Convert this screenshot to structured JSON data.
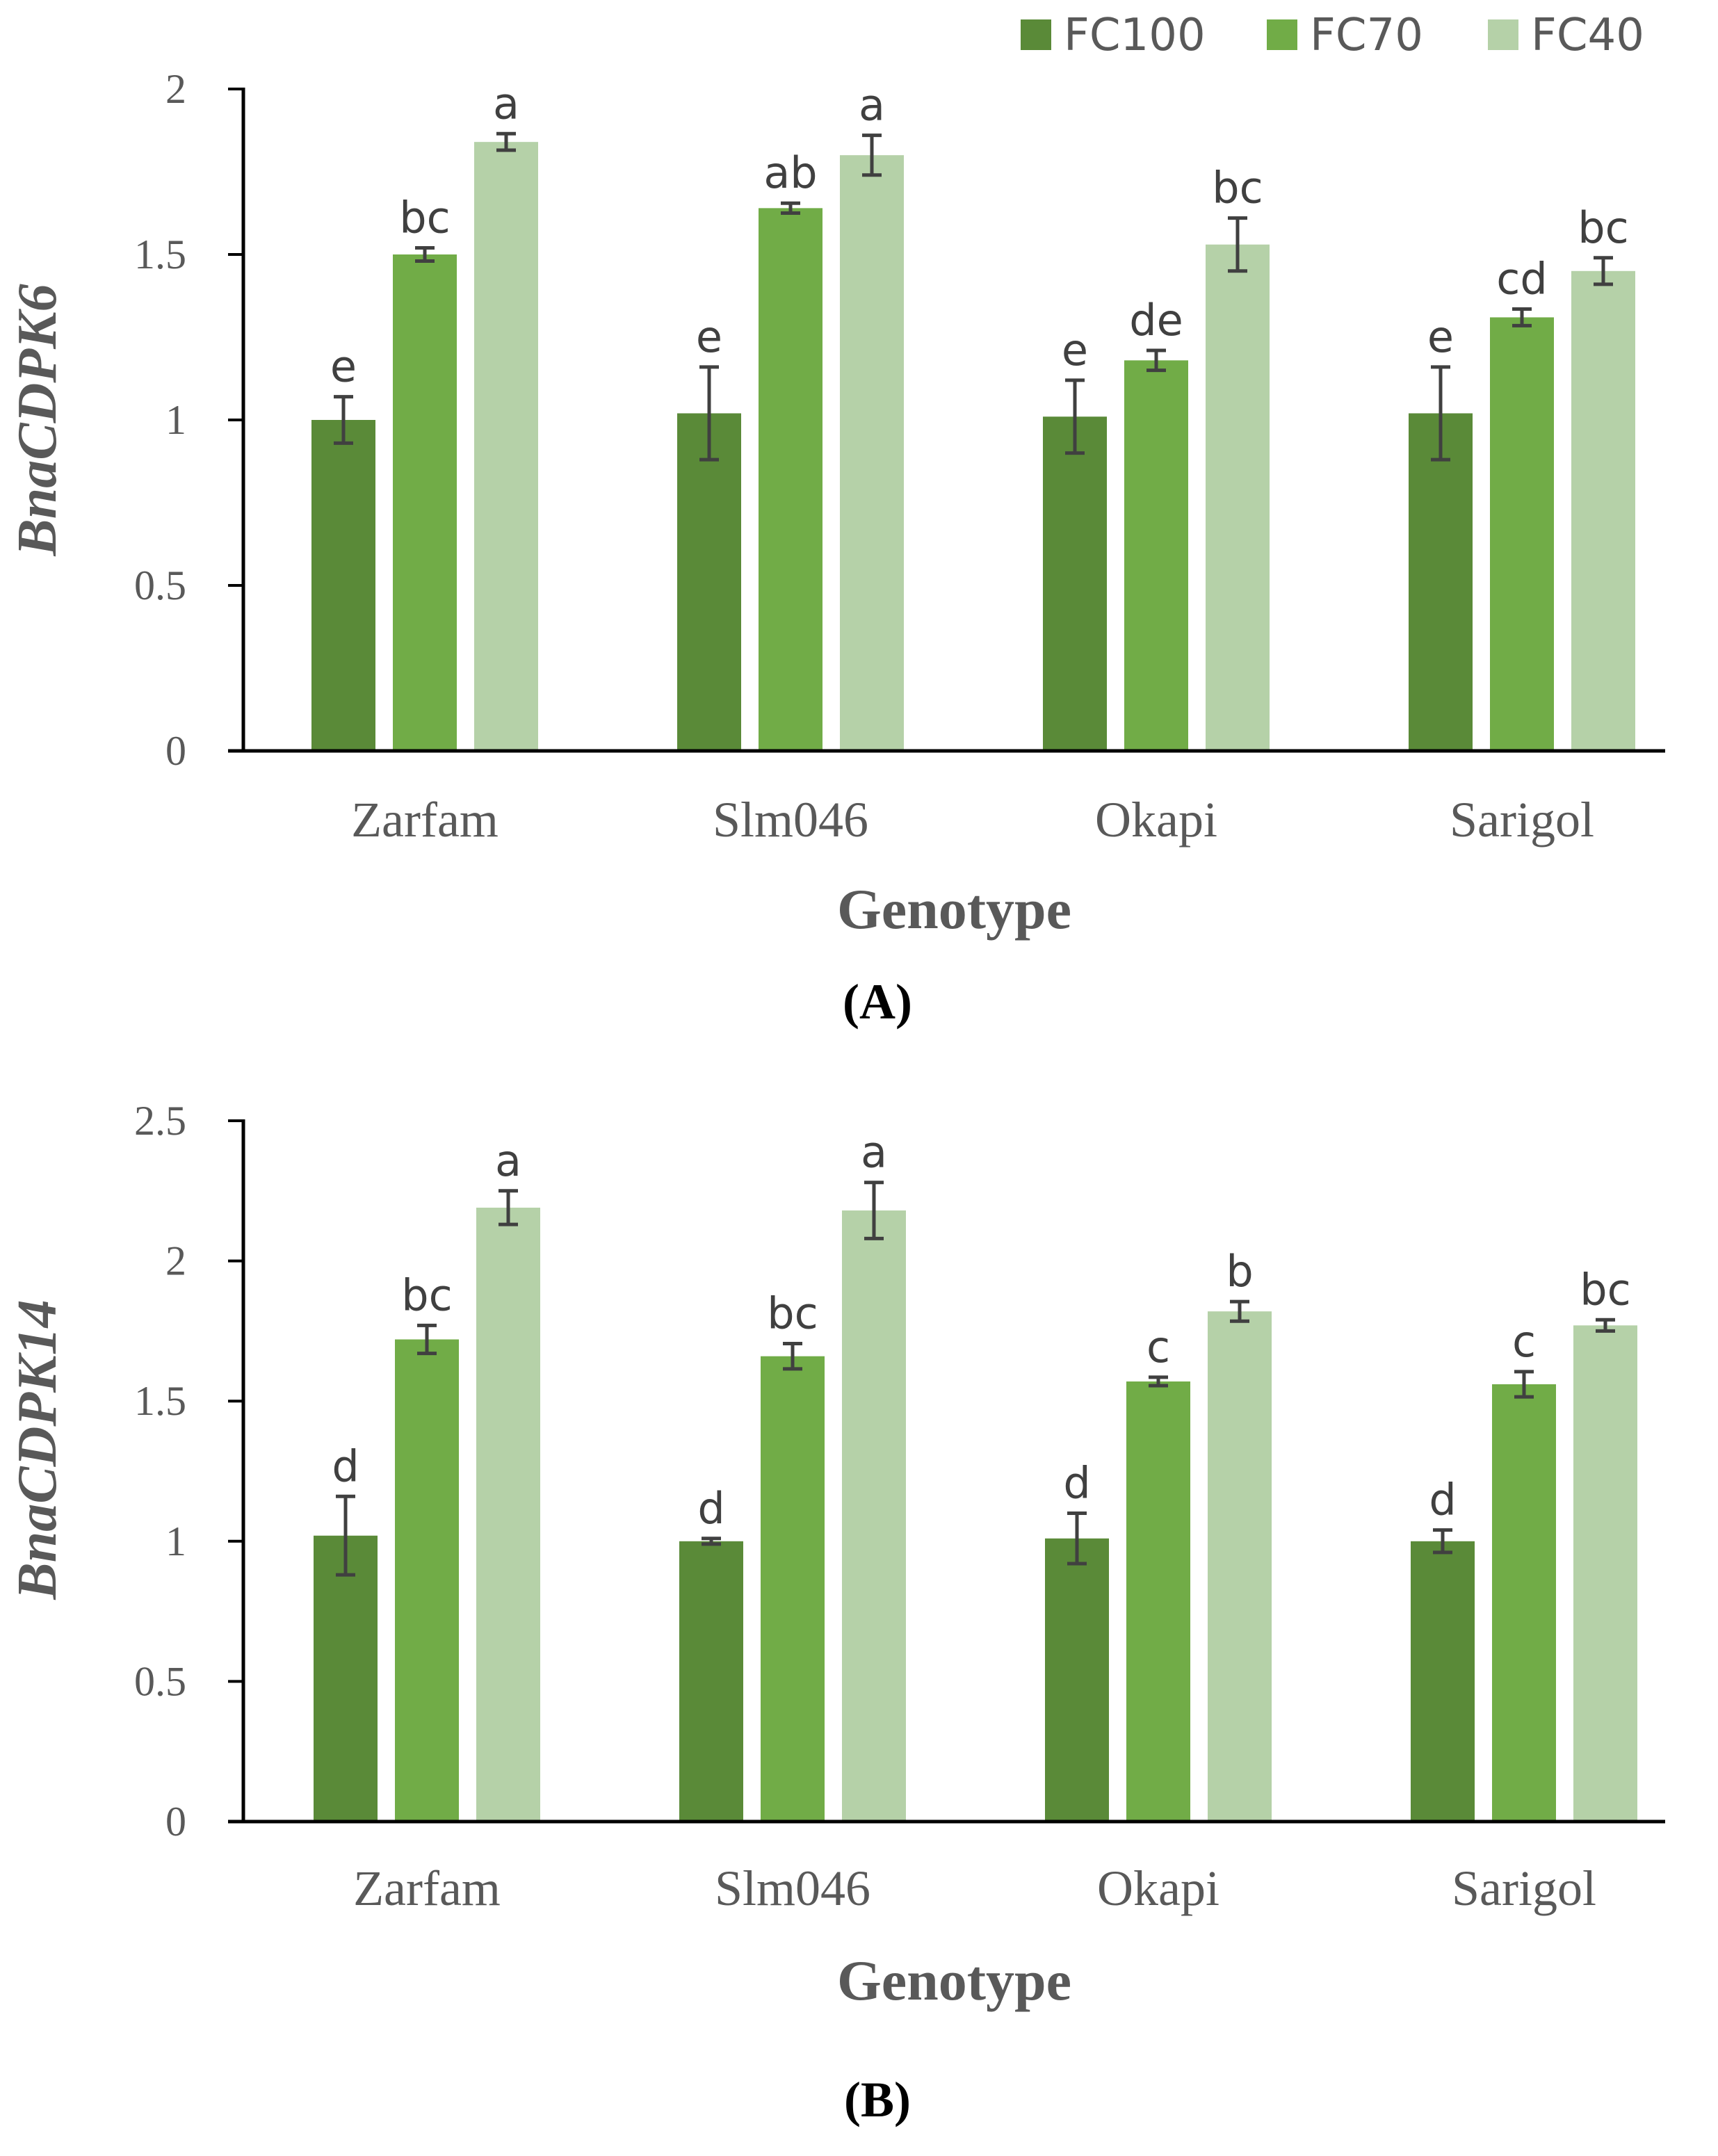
{
  "legend": [
    {
      "name": "FC100",
      "color": "#5a8a38"
    },
    {
      "name": "FC70",
      "color": "#71ac47"
    },
    {
      "name": "FC40",
      "color": "#b5d1a8"
    }
  ],
  "chart_data": [
    {
      "type": "bar",
      "panel_label": "(A)",
      "xlabel": "Genotype",
      "ylabel": "BnaCDPK6",
      "ylim": [
        0,
        2
      ],
      "yticks": [
        "0",
        "0.5",
        "1",
        "1.5",
        "2"
      ],
      "categories": [
        "Zarfam",
        "Slm046",
        "Okapi",
        "Sarigol"
      ],
      "series": [
        {
          "name": "FC100",
          "values": [
            1.0,
            1.02,
            1.01,
            1.02
          ],
          "errors": [
            0.07,
            0.14,
            0.11,
            0.14
          ],
          "labels": [
            "e",
            "e",
            "e",
            "e"
          ]
        },
        {
          "name": "FC70",
          "values": [
            1.5,
            1.64,
            1.18,
            1.31
          ],
          "errors": [
            0.02,
            0.015,
            0.03,
            0.025
          ],
          "labels": [
            "bc",
            "ab",
            "de",
            "cd"
          ]
        },
        {
          "name": "FC40",
          "values": [
            1.84,
            1.8,
            1.53,
            1.45
          ],
          "errors": [
            0.025,
            0.06,
            0.08,
            0.04
          ],
          "labels": [
            "a",
            "a",
            "bc",
            "bc"
          ]
        }
      ]
    },
    {
      "type": "bar",
      "panel_label": "(B)",
      "xlabel": "Genotype",
      "ylabel": "BnaCDPK14",
      "ylim": [
        0,
        2.5
      ],
      "yticks": [
        "0",
        "0.5",
        "1",
        "1.5",
        "2",
        "2.5"
      ],
      "categories": [
        "Zarfam",
        "Slm046",
        "Okapi",
        "Sarigol"
      ],
      "series": [
        {
          "name": "FC100",
          "values": [
            1.02,
            1.0,
            1.01,
            1.0
          ],
          "errors": [
            0.14,
            0.01,
            0.09,
            0.04
          ],
          "labels": [
            "d",
            "d",
            "d",
            "d"
          ]
        },
        {
          "name": "FC70",
          "values": [
            1.72,
            1.66,
            1.57,
            1.56
          ],
          "errors": [
            0.05,
            0.045,
            0.015,
            0.045
          ],
          "labels": [
            "bc",
            "bc",
            "c",
            "c"
          ]
        },
        {
          "name": "FC40",
          "values": [
            2.19,
            2.18,
            1.82,
            1.77
          ],
          "errors": [
            0.06,
            0.1,
            0.035,
            0.02
          ],
          "labels": [
            "a",
            "a",
            "b",
            "bc"
          ]
        }
      ]
    }
  ]
}
